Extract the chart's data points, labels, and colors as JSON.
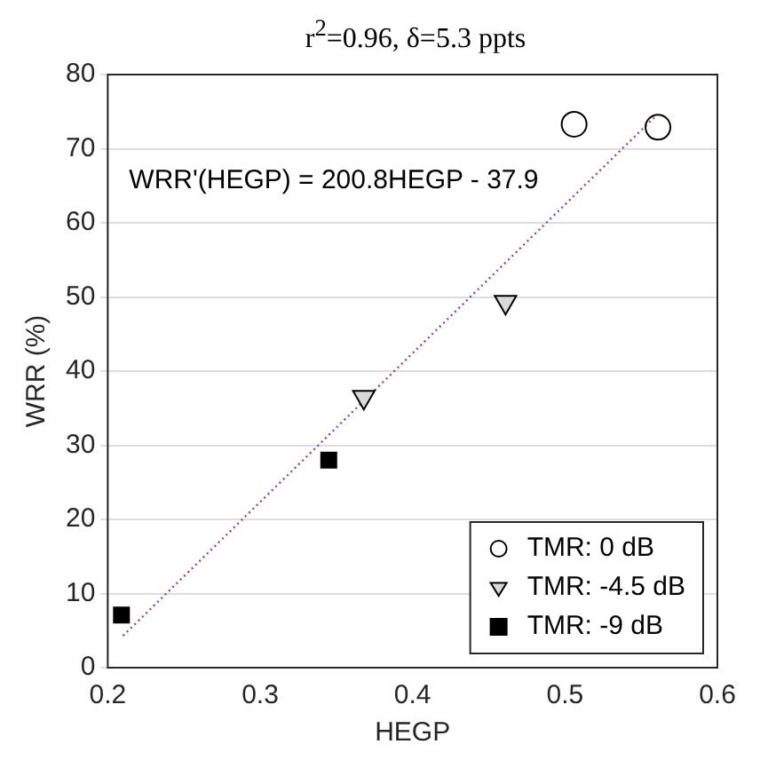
{
  "chart_data": {
    "type": "scatter",
    "title": "r$^{2}$=0.96, δ=5.3 ppts",
    "xlabel": "HEGP",
    "ylabel": "WRR (%)",
    "annotations": [
      "WRR'(HEGP) = 200.8HEGP - 37.9"
    ],
    "xlim": [
      0.2,
      0.6
    ],
    "xticks": [
      0.2,
      0.3,
      0.4,
      0.5,
      0.6
    ],
    "ylim": [
      0,
      80
    ],
    "yticks": [
      0,
      10,
      20,
      30,
      40,
      50,
      60,
      70,
      80
    ],
    "grid": "y",
    "legend": "bottom right",
    "series": [
      {
        "name": "TMR: 0 dB",
        "marker": "circle",
        "color": "#000000",
        "x": [
          0.506,
          0.561
        ],
        "values": [
          73.3,
          72.9
        ]
      },
      {
        "name": "TMR: -4.5 dB",
        "marker": "triangle",
        "color": "#d9d9d9",
        "x": [
          0.368,
          0.461
        ],
        "values": [
          36.5,
          49.3
        ]
      },
      {
        "name": "TMR: -9 dB",
        "marker": "square",
        "color": "#000000",
        "x": [
          0.209,
          0.345
        ],
        "values": [
          7.1,
          28.0
        ]
      },
      {
        "type": "line",
        "marker": "none",
        "line_style": "dotted",
        "color": "#8b3fbf",
        "x": [
          0.21,
          0.56
        ],
        "values": [
          4.3,
          74.5
        ]
      }
    ]
  }
}
